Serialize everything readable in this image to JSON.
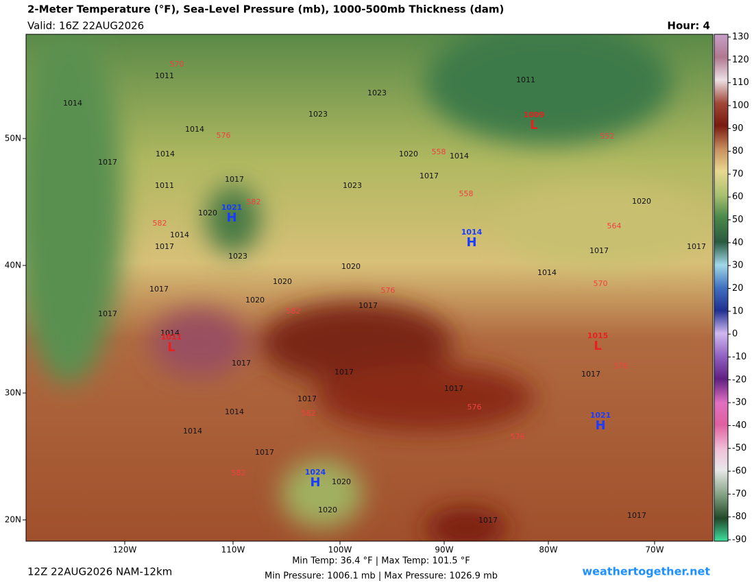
{
  "header": {
    "title": "2-Meter Temperature (°F), Sea-Level Pressure (mb), 1000-500mb Thickness (dam)",
    "valid": "Valid: 16Z 22AUG2026",
    "hour": "Hour: 4"
  },
  "map": {
    "lat_labels": [
      "50N",
      "40N",
      "30N",
      "20N"
    ],
    "lon_labels": [
      "120W",
      "110W",
      "100W",
      "90W",
      "80W",
      "70W"
    ],
    "isobar_labels": [
      "1011",
      "1014",
      "1014",
      "1017",
      "1014",
      "1011",
      "1017",
      "1023",
      "1023",
      "1020",
      "1014",
      "1017",
      "1023",
      "1020",
      "1014",
      "1017",
      "1023",
      "1020",
      "1020",
      "1017",
      "1020",
      "1017",
      "1017",
      "1014",
      "1017",
      "1017",
      "1017",
      "1014",
      "1014",
      "1017",
      "1020",
      "1020",
      "1017",
      "1017",
      "1011",
      "1020",
      "1017",
      "1017",
      "1014",
      "1017",
      "1017"
    ],
    "thickness_labels": [
      "570",
      "576",
      "582",
      "582",
      "576",
      "582",
      "558",
      "558",
      "552",
      "564",
      "570",
      "576",
      "576",
      "576",
      "582",
      "582"
    ],
    "centers": [
      {
        "letter": "H",
        "pressure": "1021"
      },
      {
        "letter": "H",
        "pressure": "1014"
      },
      {
        "letter": "H",
        "pressure": "1024"
      },
      {
        "letter": "H",
        "pressure": "1021"
      },
      {
        "letter": "L",
        "pressure": "1011"
      },
      {
        "letter": "L",
        "pressure": "1009"
      },
      {
        "letter": "L",
        "pressure": "1015"
      }
    ]
  },
  "colorbar": {
    "ticks": [
      130,
      120,
      110,
      100,
      90,
      80,
      70,
      60,
      50,
      40,
      30,
      20,
      10,
      0,
      -10,
      -20,
      -30,
      -40,
      -50,
      -60,
      -70,
      -80,
      -90
    ]
  },
  "footer": {
    "run": "12Z 22AUG2026 NAM-12km",
    "temp_range": "Min Temp:  36.4 °F | Max Temp: 101.5 °F",
    "pressure_range": "Min Pressure: 1006.1 mb | Max Pressure: 1026.9 mb",
    "site": "weathertogether.net"
  }
}
